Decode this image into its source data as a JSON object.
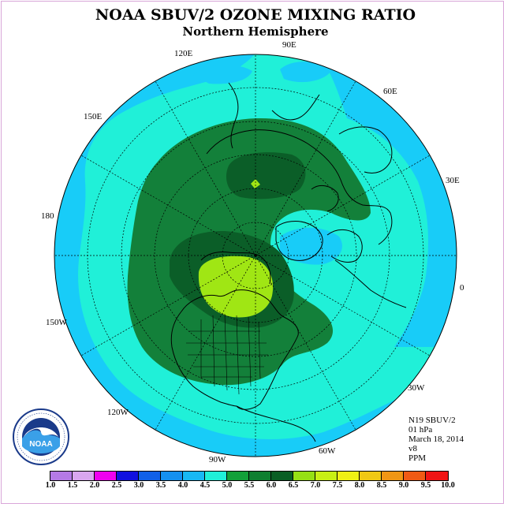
{
  "title": "NOAA SBUV/2 OZONE MIXING RATIO",
  "subtitle": "Northern Hemisphere",
  "longitudes": [
    "90E",
    "60E",
    "30E",
    "0",
    "30W",
    "60W",
    "90W",
    "120W",
    "150W",
    "180",
    "150E",
    "120E"
  ],
  "info": {
    "instrument": "N19 SBUV/2",
    "level": "01 hPa",
    "date": "March 18, 2014",
    "version": "v8",
    "units": "PPM"
  },
  "colorbar": {
    "ticks": [
      "1.0",
      "1.5",
      "2.0",
      "2.5",
      "3.0",
      "3.5",
      "4.0",
      "4.5",
      "5.0",
      "5.5",
      "6.0",
      "6.5",
      "7.0",
      "7.5",
      "8.0",
      "8.5",
      "9.0",
      "9.5",
      "10.0"
    ],
    "colors": [
      "#b57ae6",
      "#d9a6ef",
      "#f000f0",
      "#1010e0",
      "#1060e8",
      "#1490f0",
      "#18b8f4",
      "#20f0d8",
      "#13a039",
      "#0f7f30",
      "#0a5e24",
      "#96e014",
      "#c8f014",
      "#f0f014",
      "#f0c814",
      "#f09614",
      "#f05a14",
      "#f01414",
      "#8b5a32"
    ]
  },
  "map_levels": {
    "background": "#20f0d8",
    "low": "#18ccf8",
    "mid": "#13803a",
    "high": "#0b5e28",
    "peak": "#a0e614"
  },
  "logo": {
    "text": "NOAA",
    "ring": "NATIONAL OCEANIC AND ATMOSPHERIC ADMINISTRATION · U.S. DEPARTMENT OF COMMERCE"
  }
}
